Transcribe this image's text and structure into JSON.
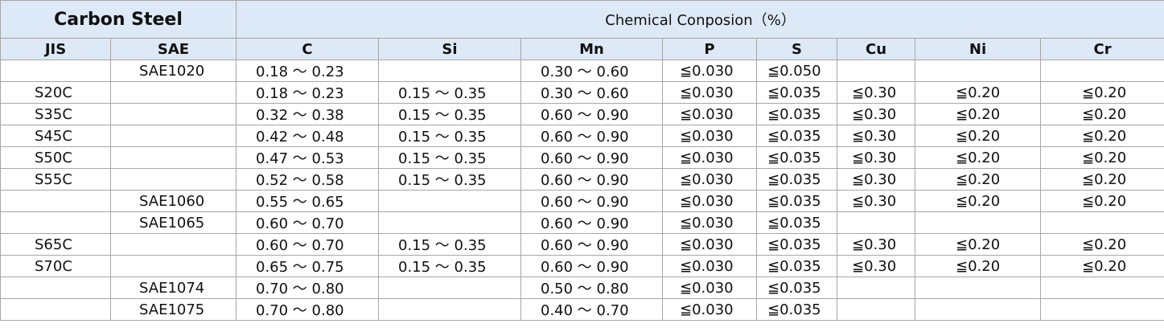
{
  "header": {
    "title": "Carbon Steel",
    "subtitle": "Chemical Conposion（%）"
  },
  "table": {
    "columns": [
      "JIS",
      "SAE",
      "C",
      "Si",
      "Mn",
      "P",
      "S",
      "Cu",
      "Ni",
      "Cr"
    ],
    "rows": [
      [
        null,
        "SAE1020",
        "0.18 ～ 0.23",
        null,
        "0.30 ～ 0.60",
        "≦0.030",
        "≦0.050",
        null,
        null,
        null
      ],
      [
        "S20C",
        null,
        "0.18 ～ 0.23",
        "0.15 ～ 0.35",
        "0.30 ～ 0.60",
        "≦0.030",
        "≦0.035",
        "≦0.30",
        "≦0.20",
        "≦0.20"
      ],
      [
        "S35C",
        null,
        "0.32 ～ 0.38",
        "0.15 ～ 0.35",
        "0.60 ～ 0.90",
        "≦0.030",
        "≦0.035",
        "≦0.30",
        "≦0.20",
        "≦0.20"
      ],
      [
        "S45C",
        null,
        "0.42 ～ 0.48",
        "0.15 ～ 0.35",
        "0.60 ～ 0.90",
        "≦0.030",
        "≦0.035",
        "≦0.30",
        "≦0.20",
        "≦0.20"
      ],
      [
        "S50C",
        null,
        "0.47 ～ 0.53",
        "0.15 ～ 0.35",
        "0.60 ～ 0.90",
        "≦0.030",
        "≦0.035",
        "≦0.30",
        "≦0.20",
        "≦0.20"
      ],
      [
        "S55C",
        null,
        "0.52 ～ 0.58",
        "0.15 ～ 0.35",
        "0.60 ～ 0.90",
        "≦0.030",
        "≦0.035",
        "≦0.30",
        "≦0.20",
        "≦0.20"
      ],
      [
        null,
        "SAE1060",
        "0.55 ～ 0.65",
        null,
        "0.60 ～ 0.90",
        "≦0.030",
        "≦0.035",
        "≦0.30",
        "≦0.20",
        "≦0.20"
      ],
      [
        null,
        "SAE1065",
        "0.60 ～ 0.70",
        null,
        "0.60 ～ 0.90",
        "≦0.030",
        "≦0.035",
        null,
        null,
        null
      ],
      [
        "S65C",
        null,
        "0.60 ～ 0.70",
        "0.15 ～ 0.35",
        "0.60 ～ 0.90",
        "≦0.030",
        "≦0.035",
        "≦0.30",
        "≦0.20",
        "≦0.20"
      ],
      [
        "S70C",
        null,
        "0.65 ～ 0.75",
        "0.15 ～ 0.35",
        "0.60 ～ 0.90",
        "≦0.030",
        "≦0.035",
        "≦0.30",
        "≦0.20",
        "≦0.20"
      ],
      [
        null,
        "SAE1074",
        "0.70 ～ 0.80",
        null,
        "0.50 ～ 0.80",
        "≦0.030",
        "≦0.035",
        null,
        null,
        null
      ],
      [
        null,
        "SAE1075",
        "0.70 ～ 0.80",
        null,
        "0.40 ～ 0.70",
        "≦0.030",
        "≦0.035",
        null,
        null,
        null
      ]
    ]
  }
}
